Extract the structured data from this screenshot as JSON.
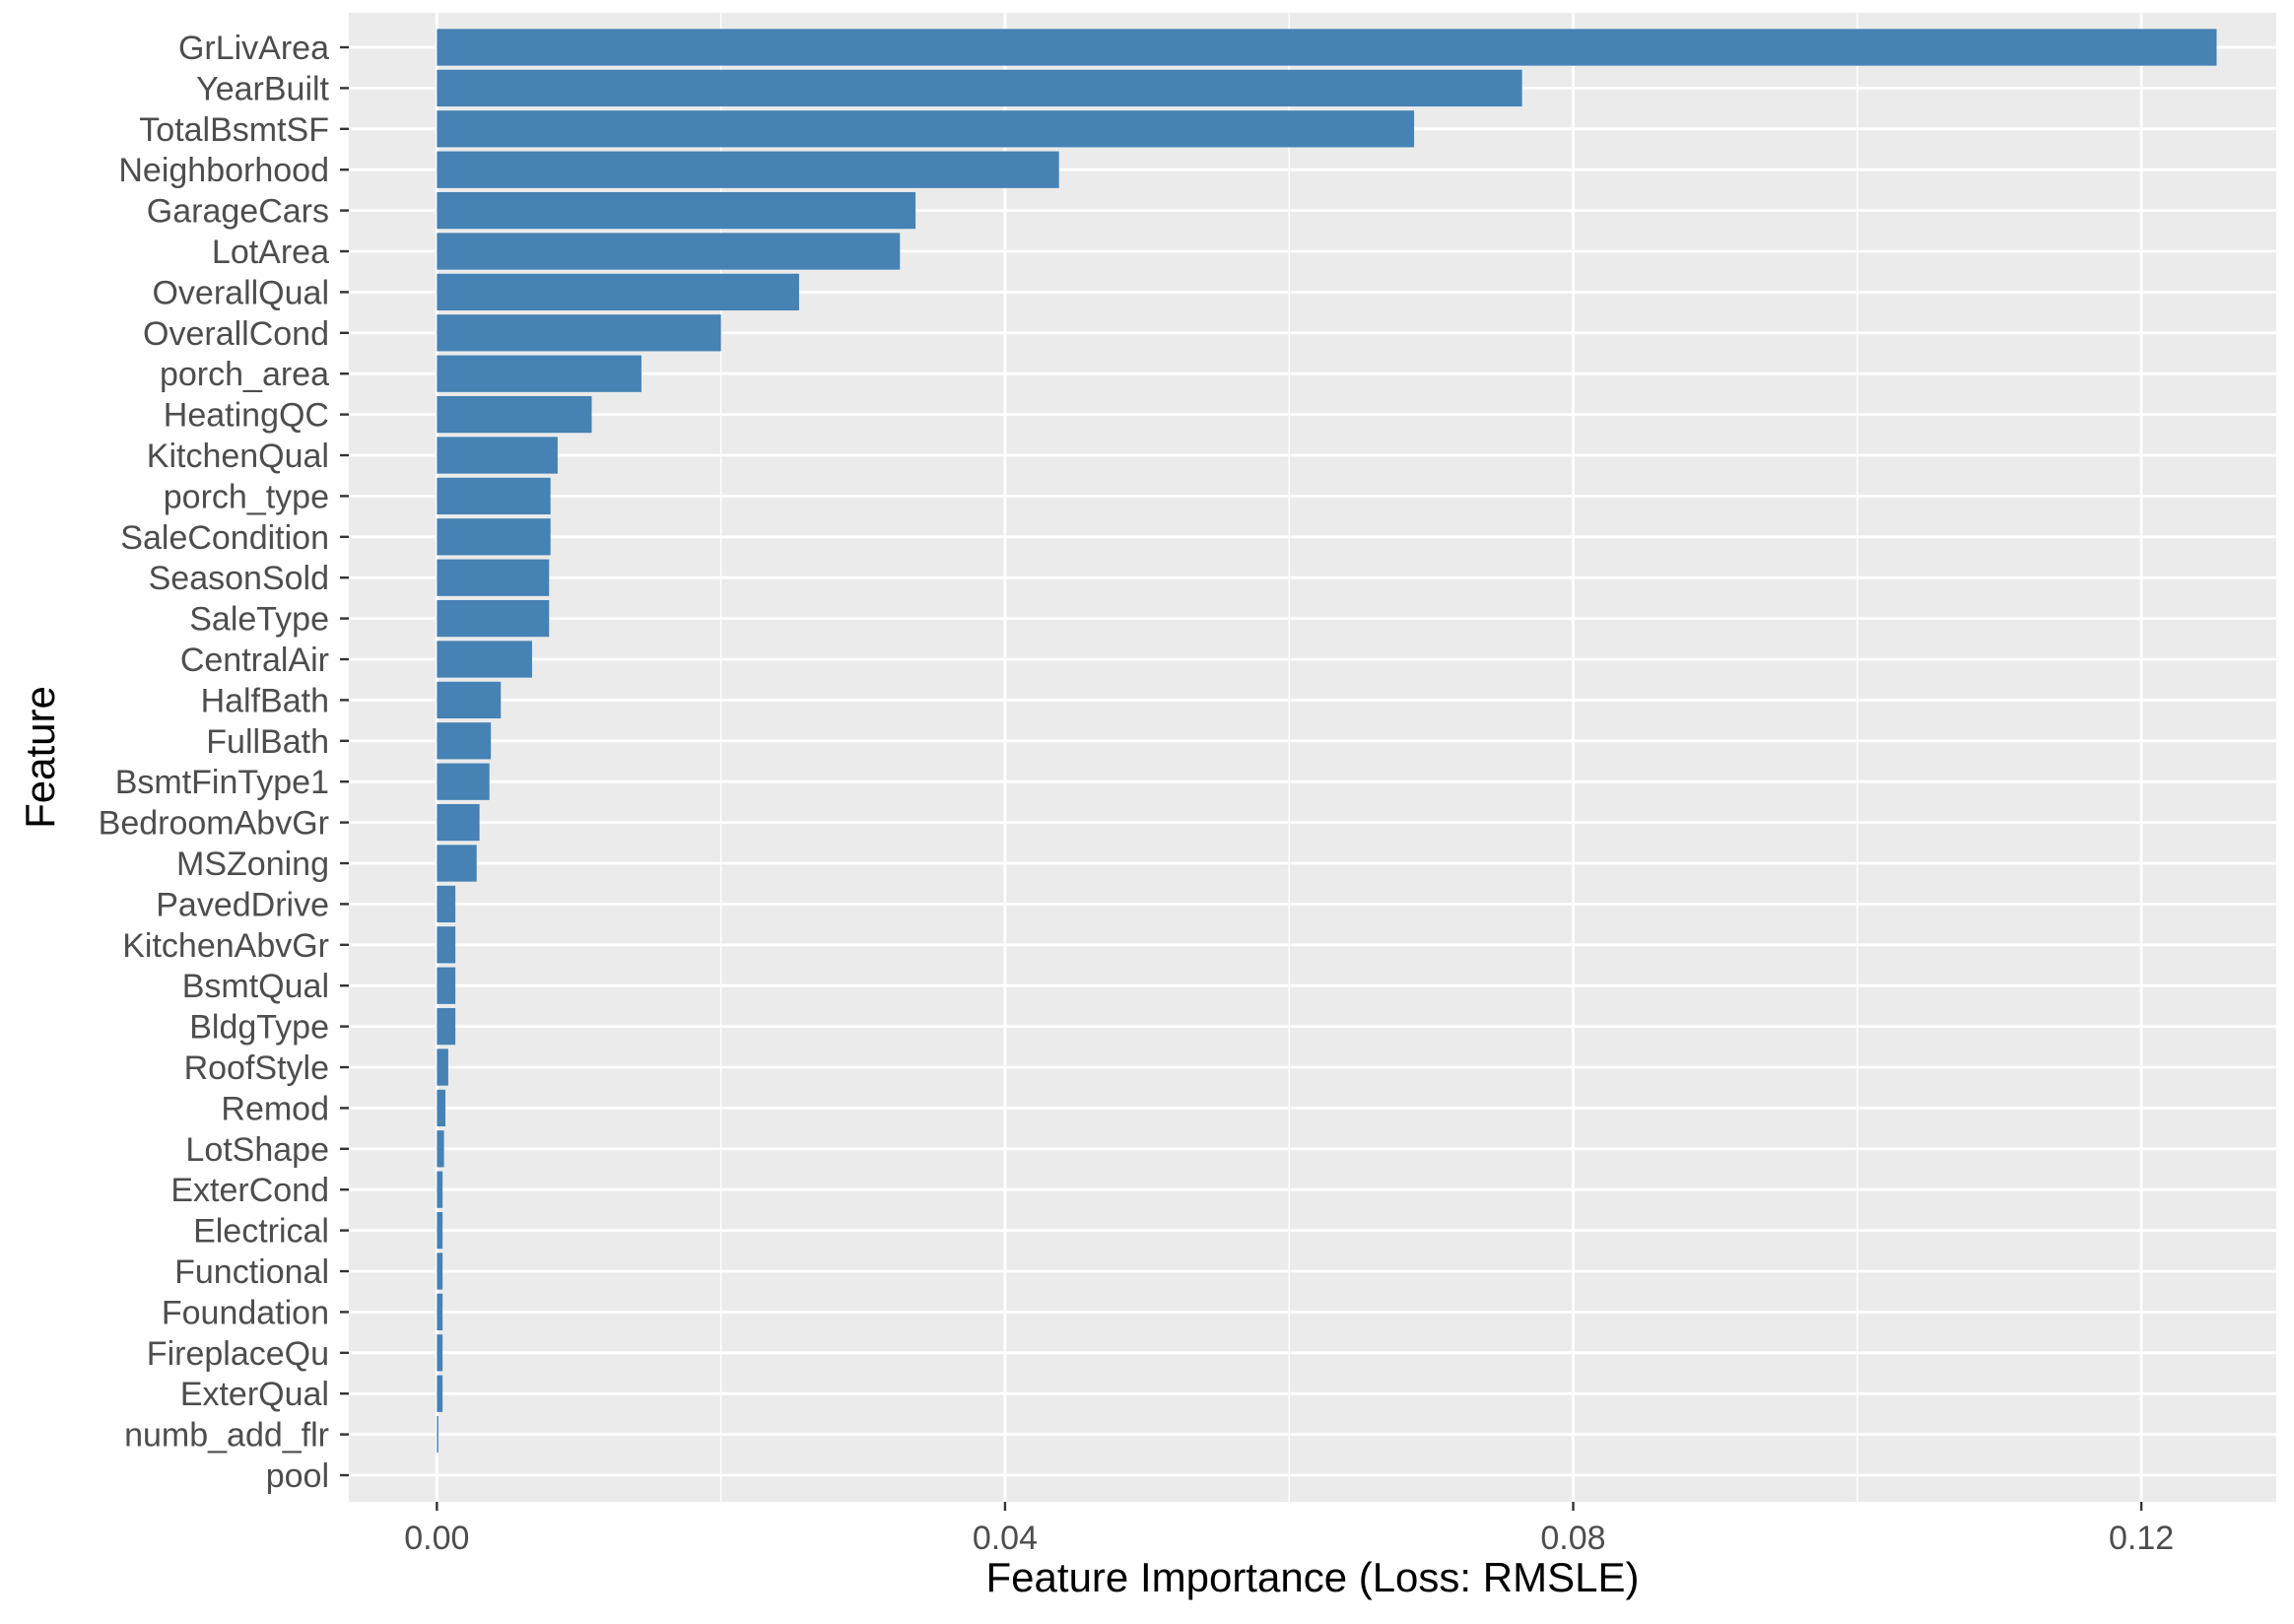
{
  "chart_data": {
    "type": "bar",
    "orientation": "horizontal",
    "title": "",
    "xlabel": "Feature Importance (Loss: RMSLE)",
    "ylabel": "Feature",
    "xlim": [
      -0.0062,
      0.1295
    ],
    "x_ticks": [
      0.0,
      0.04,
      0.08,
      0.12
    ],
    "x_tick_labels": [
      "0.00",
      "0.04",
      "0.08",
      "0.12"
    ],
    "grid": true,
    "bar_color": "#4682B4",
    "panel_background": "#EBEBEB",
    "grid_color": "#FFFFFF",
    "series": [
      {
        "name": "Feature Importance",
        "categories": [
          "GrLivArea",
          "YearBuilt",
          "TotalBsmtSF",
          "Neighborhood",
          "GarageCars",
          "LotArea",
          "OverallQual",
          "OverallCond",
          "porch_area",
          "HeatingQC",
          "KitchenQual",
          "porch_type",
          "SaleCondition",
          "SeasonSold",
          "SaleType",
          "CentralAir",
          "HalfBath",
          "FullBath",
          "BsmtFinType1",
          "BedroomAbvGr",
          "MSZoning",
          "PavedDrive",
          "KitchenAbvGr",
          "BsmtQual",
          "BldgType",
          "RoofStyle",
          "Remod",
          "LotShape",
          "ExterCond",
          "Electrical",
          "Functional",
          "Foundation",
          "FireplaceQu",
          "ExterQual",
          "numb_add_flr",
          "pool"
        ],
        "values": [
          0.1253,
          0.0764,
          0.0688,
          0.0438,
          0.0337,
          0.0326,
          0.0255,
          0.02,
          0.0144,
          0.0109,
          0.0085,
          0.008,
          0.008,
          0.0079,
          0.0079,
          0.0067,
          0.0045,
          0.0038,
          0.0037,
          0.003,
          0.0028,
          0.0013,
          0.0013,
          0.0013,
          0.0013,
          0.0008,
          0.0006,
          0.0005,
          0.0004,
          0.0004,
          0.0004,
          0.0004,
          0.0004,
          0.0004,
          0.0001,
          0.0
        ]
      }
    ]
  }
}
